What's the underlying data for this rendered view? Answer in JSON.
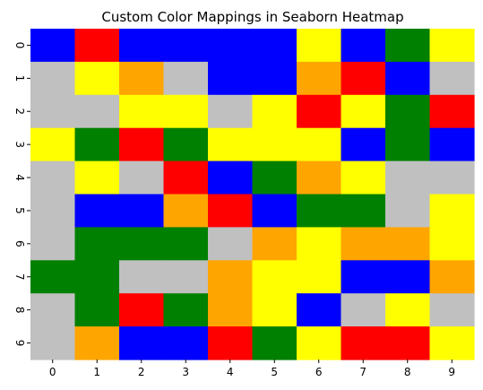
{
  "chart_data": {
    "type": "heatmap",
    "title": "Custom Color Mappings in Seaborn Heatmap",
    "xlabel": "",
    "ylabel": "",
    "x_categories": [
      "0",
      "1",
      "2",
      "3",
      "4",
      "5",
      "6",
      "7",
      "8",
      "9"
    ],
    "y_categories": [
      "0",
      "1",
      "2",
      "3",
      "4",
      "5",
      "6",
      "7",
      "8",
      "9"
    ],
    "colorbar": false,
    "grid": false,
    "palette": {
      "blue": "#0000ff",
      "red": "#ff0000",
      "green": "#008000",
      "yellow": "#ffff00",
      "orange": "#ffa500",
      "silver": "#c0c0c0"
    },
    "cells": [
      [
        "blue",
        "red",
        "blue",
        "blue",
        "blue",
        "blue",
        "yellow",
        "blue",
        "green",
        "yellow"
      ],
      [
        "silver",
        "yellow",
        "orange",
        "silver",
        "blue",
        "blue",
        "orange",
        "red",
        "blue",
        "silver"
      ],
      [
        "silver",
        "silver",
        "yellow",
        "yellow",
        "silver",
        "yellow",
        "red",
        "yellow",
        "green",
        "red"
      ],
      [
        "yellow",
        "green",
        "red",
        "green",
        "yellow",
        "yellow",
        "yellow",
        "blue",
        "green",
        "blue"
      ],
      [
        "silver",
        "yellow",
        "silver",
        "red",
        "blue",
        "green",
        "orange",
        "yellow",
        "silver",
        "silver"
      ],
      [
        "silver",
        "blue",
        "blue",
        "orange",
        "red",
        "blue",
        "green",
        "green",
        "silver",
        "yellow"
      ],
      [
        "silver",
        "green",
        "green",
        "green",
        "silver",
        "orange",
        "yellow",
        "orange",
        "orange",
        "yellow"
      ],
      [
        "green",
        "green",
        "silver",
        "silver",
        "orange",
        "yellow",
        "yellow",
        "blue",
        "blue",
        "orange"
      ],
      [
        "silver",
        "green",
        "red",
        "green",
        "orange",
        "yellow",
        "blue",
        "silver",
        "yellow",
        "silver"
      ],
      [
        "silver",
        "orange",
        "blue",
        "blue",
        "red",
        "green",
        "yellow",
        "red",
        "red",
        "yellow"
      ]
    ]
  }
}
